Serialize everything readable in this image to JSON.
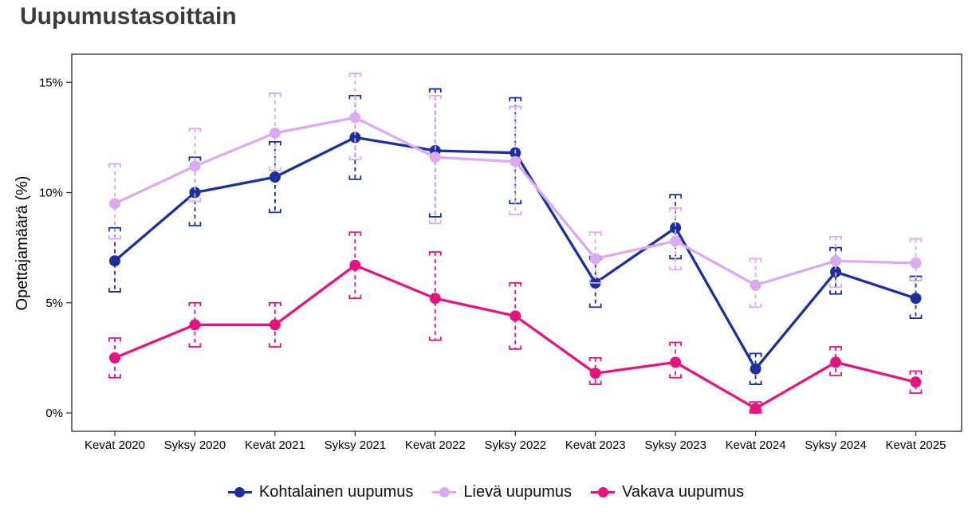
{
  "title": "Uupumustasoittain",
  "chart_data": {
    "type": "line",
    "title": "Uupumustasoittain",
    "xlabel": "",
    "ylabel": "Opettajamäärä (%)",
    "ylim": [
      -0.8,
      16.3
    ],
    "grid": false,
    "legend_position": "bottom",
    "error_bars": "dashed vertical range brackets per point",
    "yticks": [
      {
        "value": 0,
        "label": "0%"
      },
      {
        "value": 5,
        "label": "5%"
      },
      {
        "value": 10,
        "label": "10%"
      },
      {
        "value": 15,
        "label": "15%"
      }
    ],
    "categories": [
      "Kevät 2020",
      "Syksy 2020",
      "Kevät 2021",
      "Syksy 2021",
      "Kevät 2022",
      "Syksy 2022",
      "Kevät 2023",
      "Syksy 2023",
      "Kevät 2024",
      "Syksy 2024",
      "Kevät 2025"
    ],
    "series": [
      {
        "id": "kohtalainen",
        "name": "Kohtalainen uupumus",
        "color": "#1b2f9e",
        "values": [
          6.9,
          10.0,
          10.7,
          12.5,
          11.9,
          11.8,
          5.9,
          8.4,
          2.0,
          6.4,
          5.2
        ],
        "err_lo": [
          5.5,
          8.5,
          9.1,
          10.6,
          8.9,
          9.5,
          4.8,
          7.0,
          1.3,
          5.4,
          4.3
        ],
        "err_hi": [
          8.4,
          11.6,
          12.3,
          14.4,
          14.7,
          14.3,
          7.1,
          9.9,
          2.7,
          7.5,
          6.2
        ]
      },
      {
        "id": "lieva",
        "name": "Lievä uupumus",
        "color": "#dbaaf0",
        "values": [
          9.5,
          11.2,
          12.7,
          13.4,
          11.6,
          11.4,
          7.0,
          7.8,
          5.8,
          6.9,
          6.8
        ],
        "err_lo": [
          7.9,
          9.6,
          11.0,
          11.5,
          8.6,
          9.0,
          5.9,
          6.5,
          4.8,
          5.7,
          6.0
        ],
        "err_hi": [
          11.3,
          12.9,
          14.5,
          15.4,
          14.4,
          13.9,
          8.2,
          9.3,
          7.0,
          8.0,
          7.9
        ]
      },
      {
        "id": "vakava",
        "name": "Vakava uupumus",
        "color": "#e8127f",
        "values": [
          2.5,
          4.0,
          4.0,
          6.7,
          5.2,
          4.4,
          1.8,
          2.3,
          0.2,
          2.3,
          1.4
        ],
        "err_lo": [
          1.6,
          3.0,
          3.0,
          5.2,
          3.3,
          2.9,
          1.3,
          1.6,
          0.0,
          1.7,
          0.9
        ],
        "err_hi": [
          3.4,
          5.0,
          5.0,
          8.2,
          7.3,
          5.9,
          2.5,
          3.2,
          0.5,
          3.0,
          1.9
        ]
      }
    ]
  }
}
